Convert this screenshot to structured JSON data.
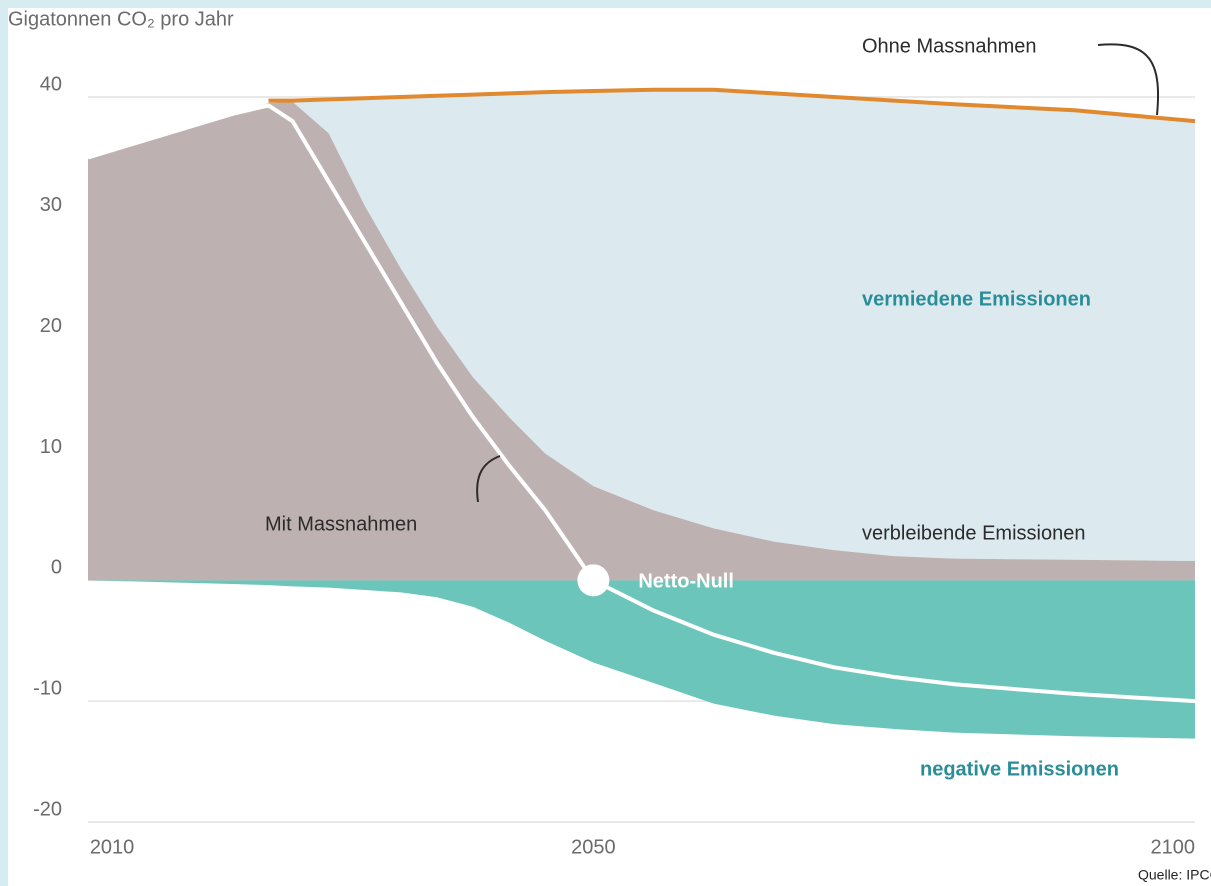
{
  "chart_data": {
    "type": "area",
    "y_axis_label": "Gigatonnen CO₂ pro Jahr",
    "x": [
      2008,
      2012,
      2016,
      2020,
      2023,
      2025,
      2028,
      2031,
      2034,
      2037,
      2040,
      2043,
      2046,
      2050,
      2055,
      2060,
      2065,
      2070,
      2075,
      2080,
      2090,
      2100
    ],
    "series": [
      {
        "name": "Ohne Massnahmen",
        "color": "#e0892e",
        "kind": "line",
        "values": [
          null,
          null,
          null,
          null,
          39.7,
          39.7,
          39.8,
          39.9,
          40.0,
          40.1,
          40.2,
          40.3,
          40.4,
          40.5,
          40.6,
          40.6,
          40.3,
          40.0,
          39.7,
          39.4,
          38.9,
          38.0
        ]
      },
      {
        "name": "verbleibende Emissionen",
        "color": "#bdb2b1",
        "kind": "area",
        "values": [
          35,
          36.2,
          37.4,
          38.6,
          39.5,
          39.6,
          37,
          31,
          25.8,
          21,
          16.8,
          13.5,
          10.5,
          7.8,
          5.8,
          4.3,
          3.2,
          2.5,
          2.0,
          1.8,
          1.7,
          1.6
        ]
      },
      {
        "name": "negative Emissionen",
        "color": "#6cc5ba",
        "kind": "area",
        "values": [
          0,
          -0.1,
          -0.2,
          -0.3,
          -0.4,
          -0.5,
          -0.6,
          -0.8,
          -1.0,
          -1.4,
          -2.2,
          -3.5,
          -5.0,
          -6.8,
          -8.5,
          -10.2,
          -11.2,
          -11.9,
          -12.3,
          -12.6,
          -12.9,
          -13.1
        ]
      },
      {
        "name": "Mit Massnahmen",
        "color": "#ffffff",
        "kind": "line",
        "values": [
          35,
          36.2,
          37.4,
          38.6,
          39.3,
          38.0,
          33,
          28,
          23,
          18,
          13.5,
          9.5,
          5.8,
          0,
          -2.5,
          -4.5,
          -6.0,
          -7.2,
          -8.0,
          -8.6,
          -9.4,
          -10.0
        ]
      }
    ],
    "avoided_label": "vermiedene Emissionen",
    "avoided_color": "#dceaf0",
    "net_zero_label": "Netto-Null",
    "source": "Quelle: IPCC",
    "xlim": [
      2008,
      2100
    ],
    "xticks": [
      2010,
      2050,
      2100
    ],
    "ylim": [
      -20,
      40
    ],
    "yticks": [
      -20,
      -10,
      0,
      10,
      20,
      30,
      40
    ],
    "grid": true
  }
}
